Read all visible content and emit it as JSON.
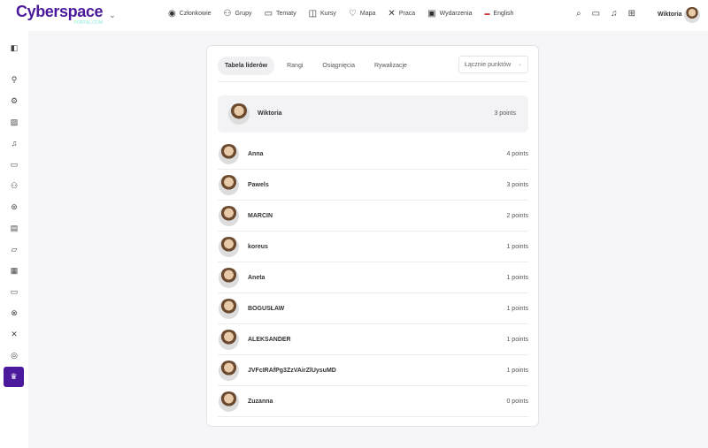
{
  "header": {
    "logo": "Cyberspace",
    "logo_sub": "PORTAL.COM",
    "nav": [
      {
        "label": "Członkowie",
        "icon": "user-circle-icon"
      },
      {
        "label": "Grupy",
        "icon": "users-icon"
      },
      {
        "label": "Tematy",
        "icon": "chat-icon"
      },
      {
        "label": "Kursy",
        "icon": "course-icon"
      },
      {
        "label": "Mapa",
        "icon": "map-pin-icon"
      },
      {
        "label": "Praca",
        "icon": "tools-icon"
      },
      {
        "label": "Wydarzenia",
        "icon": "calendar-icon"
      },
      {
        "label": "English",
        "icon": "uk-flag-icon"
      }
    ],
    "user": "Wiktoria"
  },
  "tabs": [
    "Tabela liderów",
    "Rangi",
    "Osiągnięcia",
    "Rywalizacje"
  ],
  "select": {
    "value": "Łącznie punktów"
  },
  "me": {
    "name": "Wiktoria",
    "points": "3 points"
  },
  "rows": [
    {
      "name": "Anna",
      "points": "4 points"
    },
    {
      "name": "Pawels",
      "points": "3 points"
    },
    {
      "name": "MARCIN",
      "points": "2 points"
    },
    {
      "name": "koreus",
      "points": "1 points"
    },
    {
      "name": "Aneta",
      "points": "1 points"
    },
    {
      "name": "BOGUSŁAW",
      "points": "1 points"
    },
    {
      "name": "ALEKSANDER",
      "points": "1 points"
    },
    {
      "name": "JVFcIRAfPg3ZzVAirZlUysuMD",
      "points": "1 points"
    },
    {
      "name": "Zuzanna",
      "points": "0 points"
    }
  ],
  "colors": {
    "accent": "#4b1a9c"
  }
}
